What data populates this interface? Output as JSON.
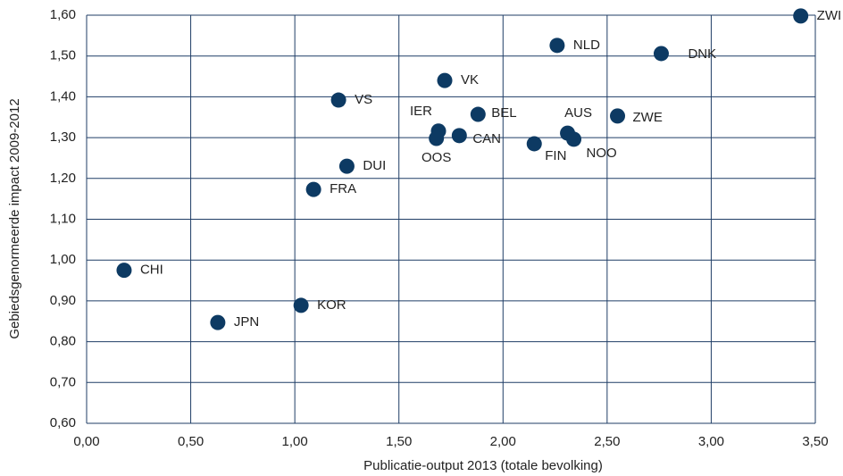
{
  "chart_data": {
    "type": "scatter",
    "x_label": "Publicatie-output 2013 (totale bevolking)",
    "y_label": "Gebiedsgenormeerde impact 2009-2012",
    "color": "#0d3a63",
    "grid": true,
    "xlim": [
      0,
      3.5
    ],
    "ylim": [
      0.6,
      1.6
    ],
    "xticks": [
      {
        "value": 0,
        "label": "0,00"
      },
      {
        "value": 0.5,
        "label": "0,50"
      },
      {
        "value": 1,
        "label": "1,00"
      },
      {
        "value": 1.5,
        "label": "1,50"
      },
      {
        "value": 2,
        "label": "2,00"
      },
      {
        "value": 2.5,
        "label": "2,50"
      },
      {
        "value": 3,
        "label": "3,00"
      },
      {
        "value": 3.5,
        "label": "3,50"
      }
    ],
    "yticks": [
      {
        "value": 0.6,
        "label": "0,60"
      },
      {
        "value": 0.7,
        "label": "0,70"
      },
      {
        "value": 0.8,
        "label": "0,80"
      },
      {
        "value": 0.9,
        "label": "0,90"
      },
      {
        "value": 1,
        "label": "1,00"
      },
      {
        "value": 1.1,
        "label": "1,10"
      },
      {
        "value": 1.2,
        "label": "1,20"
      },
      {
        "value": 1.3,
        "label": "1,30"
      },
      {
        "value": 1.4,
        "label": "1,40"
      },
      {
        "value": 1.5,
        "label": "1,50"
      },
      {
        "value": 1.6,
        "label": "1,60"
      }
    ],
    "labels": [
      "CHI",
      "JPN",
      "KOR",
      "FRA",
      "DUI",
      "VS",
      "VK",
      "IER",
      "OOS",
      "CAN",
      "BEL",
      "FIN",
      "AUS",
      "NOO",
      "NLD",
      "DNK",
      "ZWE",
      "ZWI"
    ],
    "x": [
      0.18,
      0.63,
      1.03,
      1.09,
      1.25,
      1.21,
      1.72,
      1.69,
      1.68,
      1.79,
      1.88,
      2.15,
      2.31,
      2.34,
      2.26,
      2.76,
      2.55,
      3.43
    ],
    "values": [
      0.975,
      0.847,
      0.889,
      1.173,
      1.23,
      1.392,
      1.44,
      1.316,
      1.298,
      1.305,
      1.357,
      1.285,
      1.311,
      1.296,
      1.526,
      1.506,
      1.353,
      1.598
    ]
  }
}
